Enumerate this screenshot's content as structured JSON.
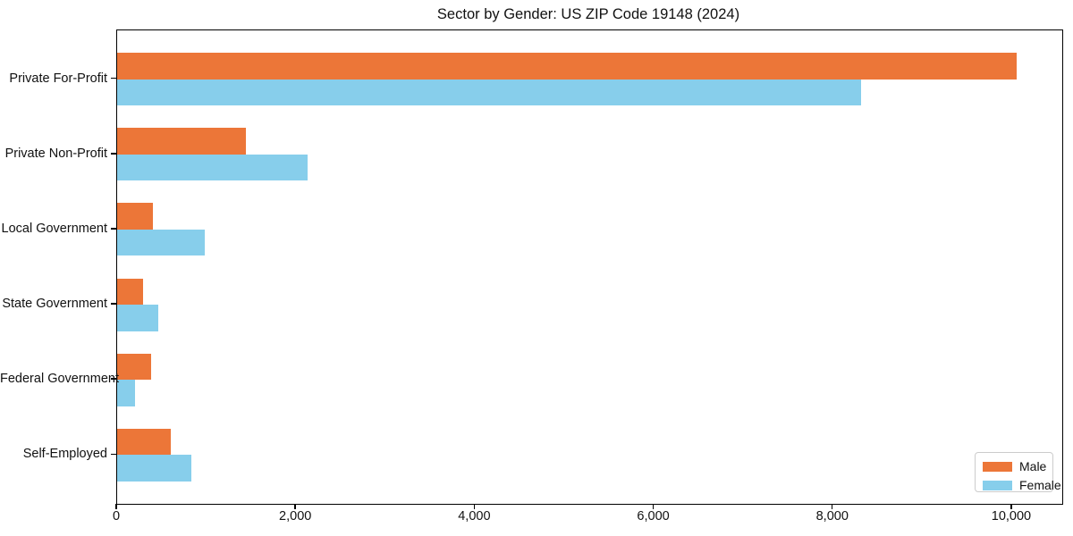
{
  "title": "Sector by Gender: US ZIP Code 19148 (2024)",
  "chart_data": {
    "type": "bar",
    "orientation": "horizontal",
    "title": "Sector by Gender: US ZIP Code 19148 (2024)",
    "xlabel": "",
    "ylabel": "",
    "categories": [
      "Private For-Profit",
      "Private Non-Profit",
      "Local Government",
      "State Government",
      "Federal Government",
      "Self-Employed"
    ],
    "series": [
      {
        "name": "Male",
        "color": "#EC7638",
        "values": [
          10050,
          1440,
          400,
          290,
          375,
          600
        ]
      },
      {
        "name": "Female",
        "color": "#87CEEB",
        "values": [
          8310,
          2130,
          980,
          460,
          200,
          830
        ]
      }
    ],
    "xlim": [
      0,
      10560
    ],
    "x_ticks": [
      0,
      2000,
      4000,
      6000,
      8000,
      10000
    ],
    "x_tick_labels": [
      "0",
      "2,000",
      "4,000",
      "6,000",
      "8,000",
      "10,000"
    ],
    "grid": false,
    "legend_position": "lower right"
  }
}
